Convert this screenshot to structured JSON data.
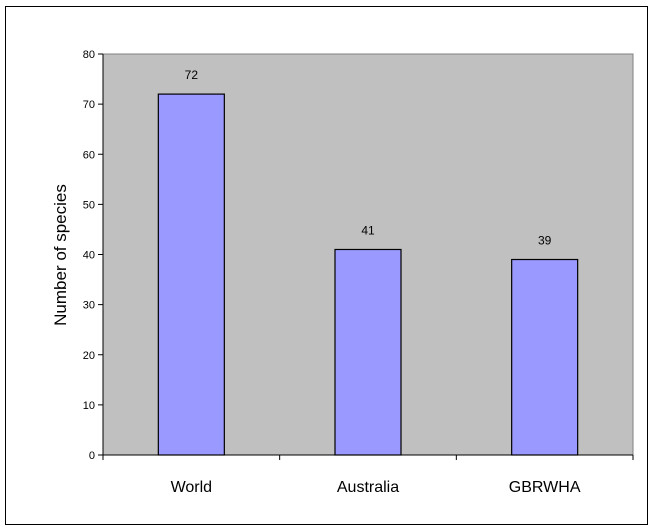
{
  "chart_data": {
    "type": "bar",
    "title": "",
    "xlabel": "",
    "ylabel": "Number of species",
    "categories": [
      "World",
      "Australia",
      "GBRWHA"
    ],
    "values": [
      72,
      41,
      39
    ],
    "data_labels": [
      "72",
      "41",
      "39"
    ],
    "ylim": [
      0,
      80
    ],
    "yticks": [
      0,
      10,
      20,
      30,
      40,
      50,
      60,
      70,
      80
    ],
    "grid": false,
    "legend": "none",
    "colors": {
      "bar_fill": "#9999ff",
      "bar_stroke": "#000000",
      "plot_background": "#c0c0c0",
      "frame": "#000000"
    }
  }
}
